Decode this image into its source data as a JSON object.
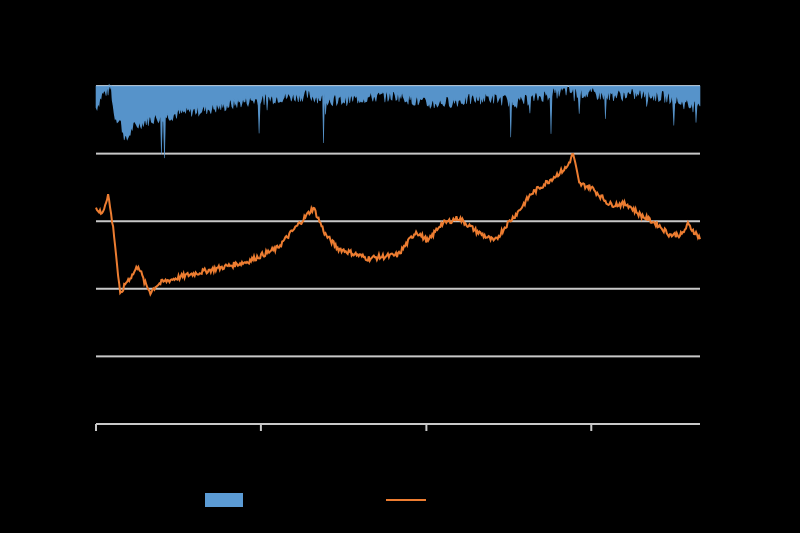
{
  "chart_data": {
    "type": "area",
    "title": "",
    "xlabel": "",
    "ylabel": "",
    "x_range": [
      0,
      1
    ],
    "ylim": [
      -5,
      0
    ],
    "y_gridlines": [
      0,
      -1,
      -2,
      -3,
      -4
    ],
    "x_tick_positions": [
      0,
      0.273,
      0.547,
      0.82
    ],
    "grid": "horizontal",
    "legend_position": "bottom",
    "series": [
      {
        "name": "",
        "kind": "area",
        "color": "#5b9bd5",
        "x": [
          0,
          0.01,
          0.02,
          0.025,
          0.03,
          0.04,
          0.05,
          0.06,
          0.08,
          0.1,
          0.13,
          0.16,
          0.2,
          0.25,
          0.3,
          0.35,
          0.4,
          0.45,
          0.5,
          0.55,
          0.6,
          0.65,
          0.7,
          0.75,
          0.78,
          0.8,
          0.85,
          0.9,
          0.95,
          0.99,
          1.0
        ],
        "values": [
          -0.3,
          -0.1,
          -0.05,
          0.0,
          -0.4,
          -0.5,
          -0.8,
          -0.6,
          -0.5,
          -0.45,
          -0.4,
          -0.35,
          -0.3,
          -0.2,
          -0.15,
          -0.12,
          -0.2,
          -0.15,
          -0.12,
          -0.25,
          -0.2,
          -0.15,
          -0.22,
          -0.1,
          -0.05,
          -0.08,
          -0.12,
          -0.1,
          -0.15,
          -0.3,
          -0.2
        ]
      },
      {
        "name": "",
        "kind": "line",
        "color": "#ed7d31",
        "x": [
          0,
          0.01,
          0.02,
          0.03,
          0.04,
          0.05,
          0.06,
          0.07,
          0.08,
          0.09,
          0.1,
          0.11,
          0.13,
          0.15,
          0.2,
          0.25,
          0.3,
          0.33,
          0.36,
          0.38,
          0.4,
          0.45,
          0.5,
          0.53,
          0.55,
          0.57,
          0.6,
          0.63,
          0.66,
          0.68,
          0.7,
          0.72,
          0.75,
          0.78,
          0.79,
          0.8,
          0.82,
          0.85,
          0.88,
          0.9,
          0.93,
          0.95,
          0.97,
          0.98,
          0.99,
          1.0
        ],
        "values": [
          -1.8,
          -1.9,
          -1.6,
          -2.2,
          -3.1,
          -2.9,
          -2.8,
          -2.65,
          -2.9,
          -3.05,
          -2.95,
          -2.9,
          -2.85,
          -2.8,
          -2.7,
          -2.6,
          -2.4,
          -2.1,
          -1.8,
          -2.2,
          -2.4,
          -2.55,
          -2.5,
          -2.15,
          -2.3,
          -2.05,
          -1.95,
          -2.15,
          -2.3,
          -2.05,
          -1.85,
          -1.6,
          -1.4,
          -1.2,
          -1.0,
          -1.45,
          -1.5,
          -1.75,
          -1.75,
          -1.9,
          -2.05,
          -2.2,
          -2.2,
          -2.05,
          -2.15,
          -2.25
        ]
      }
    ]
  },
  "legend": [
    {
      "label": "",
      "color": "#5b9bd5",
      "kind": "bar"
    },
    {
      "label": "",
      "color": "#ed7d31",
      "kind": "line"
    }
  ]
}
